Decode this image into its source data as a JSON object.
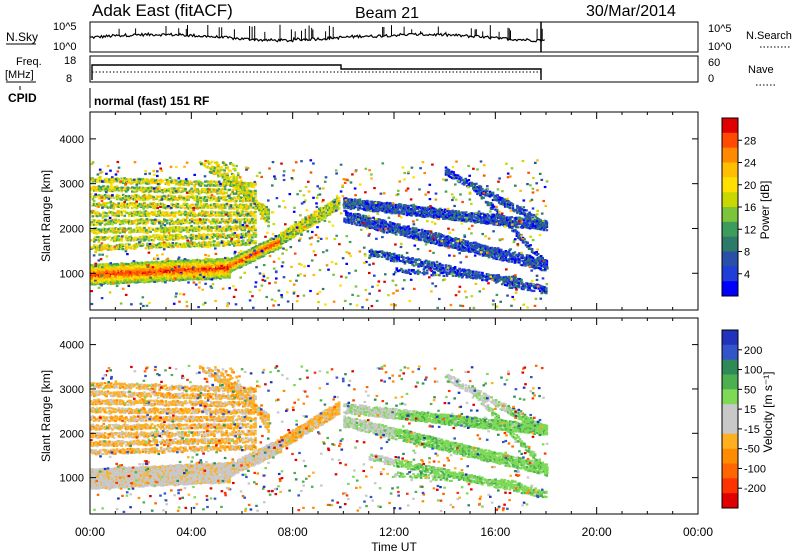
{
  "header": {
    "station": "Adak East (fitACF)",
    "beam": "Beam 21",
    "date": "30/Mar/2014"
  },
  "panels": {
    "nsky": {
      "label": "N.Sky",
      "ticks_left": [
        "10^5",
        "10^0"
      ],
      "ticks_right": [
        "10^5",
        "10^0"
      ],
      "right_label": "N.Search"
    },
    "freq": {
      "label_line1": "Freq.",
      "label_line2": "[MHz]",
      "ticks_left": [
        "18",
        "8"
      ],
      "ticks_right": [
        "60",
        "0"
      ],
      "right_label": "Nave"
    },
    "cpid": {
      "label": "CPID",
      "value": "normal (fast) 151 RF"
    }
  },
  "power_colorbar": {
    "label": "Power [dB]",
    "ticks": [
      "28",
      "24",
      "20",
      "16",
      "12",
      "8",
      "4"
    ],
    "colors": [
      "#e10000",
      "#ff4a00",
      "#ff8a00",
      "#ffbf00",
      "#ffe000",
      "#c8d800",
      "#7cc43a",
      "#3c9c5c",
      "#2e7a6a",
      "#2a4fa8",
      "#1f3ed8",
      "#0000ff"
    ]
  },
  "velocity_colorbar": {
    "label": "Velocity [m s⁻¹]",
    "ticks": [
      "200",
      "100",
      "50",
      "15",
      "-15",
      "-50",
      "-100",
      "-200"
    ],
    "colors": [
      "#2233bb",
      "#3355cc",
      "#2e8b57",
      "#4caf50",
      "#7ed957",
      "#c8c8c8",
      "#c8c8c8",
      "#ffb020",
      "#ff8c00",
      "#ff6600",
      "#ff3300",
      "#e00000"
    ]
  },
  "chart_data": [
    {
      "type": "heatmap",
      "title": "Power",
      "xlabel": "Time UT",
      "ylabel": "Slant Range [km]",
      "x_ticks": [
        "00:00",
        "04:00",
        "08:00",
        "12:00",
        "16:00",
        "20:00",
        "00:00"
      ],
      "y_ticks": [
        "1000",
        "2000",
        "3000",
        "4000"
      ],
      "xlim_hours": [
        0,
        24
      ],
      "ylim_km": [
        180,
        4600
      ],
      "data_end_hour": 18
    },
    {
      "type": "heatmap",
      "title": "Velocity",
      "xlabel": "Time UT",
      "ylabel": "Slant Range [km]",
      "x_ticks": [
        "00:00",
        "04:00",
        "08:00",
        "12:00",
        "16:00",
        "20:00",
        "00:00"
      ],
      "y_ticks": [
        "1000",
        "2000",
        "3000",
        "4000"
      ],
      "xlim_hours": [
        0,
        24
      ],
      "ylim_km": [
        180,
        4600
      ],
      "data_end_hour": 18
    }
  ],
  "x_axis_label": "Time UT"
}
